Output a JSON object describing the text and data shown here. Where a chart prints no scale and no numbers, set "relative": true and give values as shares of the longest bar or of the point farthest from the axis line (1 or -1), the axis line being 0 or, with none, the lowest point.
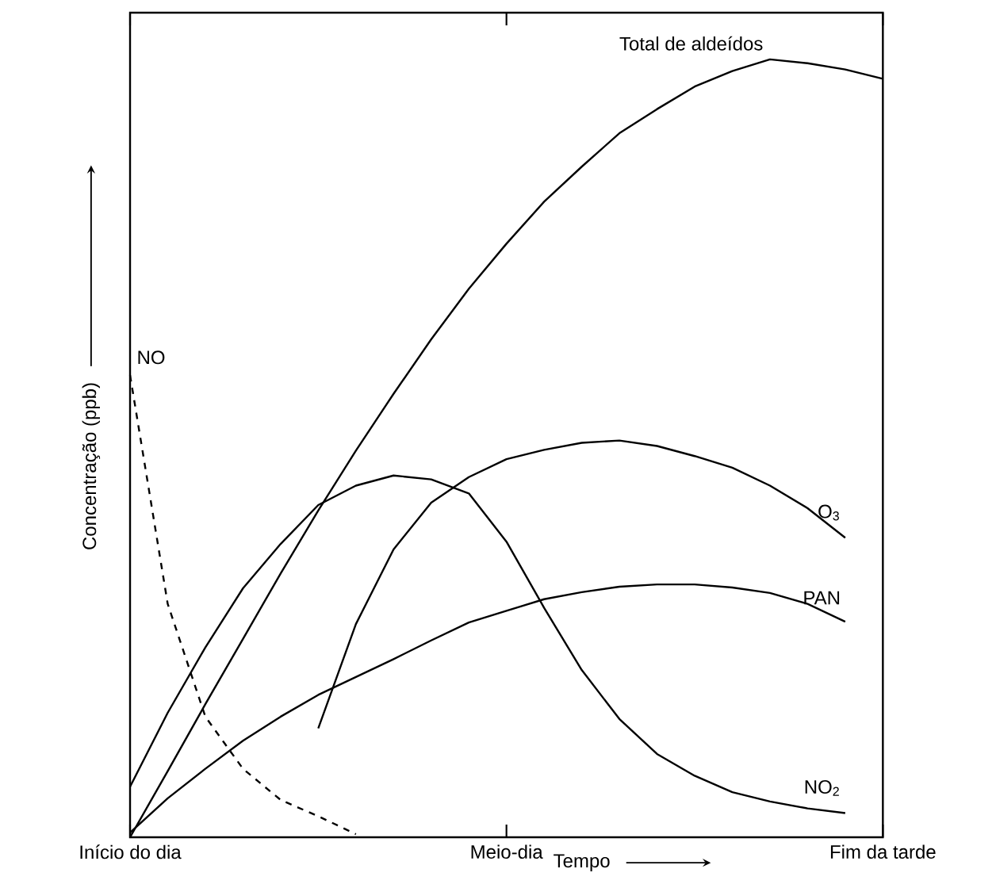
{
  "chart_data": {
    "type": "line",
    "relative": true,
    "xlabel": "Tempo",
    "ylabel": "Concentração (ppb)",
    "categories": [
      "Início do dia",
      null,
      null,
      null,
      null,
      null,
      null,
      null,
      null,
      null,
      "Meio-dia",
      null,
      null,
      null,
      null,
      null,
      null,
      null,
      null,
      null,
      "Fim da tarde"
    ],
    "series": [
      {
        "name": "Total de aldeídos",
        "color": "#000000",
        "values": [
          0,
          0.085,
          0.171,
          0.255,
          0.339,
          0.42,
          0.497,
          0.57,
          0.64,
          0.705,
          0.763,
          0.817,
          0.862,
          0.905,
          0.936,
          0.965,
          0.985,
          1,
          0.995,
          0.987,
          0.975
        ]
      },
      {
        "name": "NO",
        "color": "#000000",
        "line_style": "dashed",
        "values": [
          0.594,
          0.3,
          0.155,
          0.088,
          0.048,
          0.027,
          0.004,
          null,
          null,
          null,
          null,
          null,
          null,
          null,
          null,
          null,
          null,
          null,
          null,
          null,
          null
        ]
      },
      {
        "name": "O$_{3}$",
        "color": "#000000",
        "values": [
          null,
          null,
          null,
          null,
          null,
          0.14,
          0.274,
          0.37,
          0.43,
          0.463,
          0.486,
          0.498,
          0.507,
          0.51,
          0.503,
          0.49,
          0.475,
          0.452,
          0.423,
          0.385,
          null
        ]
      },
      {
        "name": "PAN",
        "color": "#000000",
        "values": [
          0.006,
          0.05,
          0.088,
          0.124,
          0.155,
          0.183,
          0.206,
          0.229,
          0.253,
          0.276,
          0.291,
          0.306,
          0.315,
          0.322,
          0.325,
          0.325,
          0.321,
          0.314,
          0.3,
          0.277,
          null
        ]
      },
      {
        "name": "NO$_{2}$",
        "color": "#000000",
        "values": [
          0.065,
          0.16,
          0.244,
          0.32,
          0.377,
          0.427,
          0.452,
          0.465,
          0.46,
          0.442,
          0.38,
          0.295,
          0.215,
          0.152,
          0.107,
          0.079,
          0.058,
          0.046,
          0.037,
          0.031,
          null
        ]
      }
    ]
  }
}
